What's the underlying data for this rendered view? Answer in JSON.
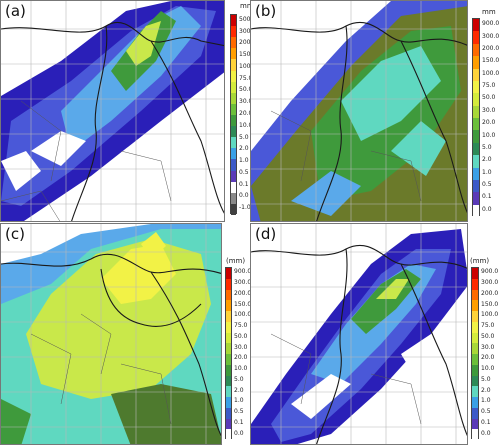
{
  "panels": [
    {
      "label": "(a)",
      "unit": "mm",
      "ticks": [
        "500",
        "300.0",
        "200.0",
        "150.0",
        "100.0",
        "75.0",
        "50.0",
        "30.0",
        "20.0",
        "10.0",
        "5.0",
        "2.0",
        "1.0",
        "0.5",
        "0.1",
        "0.0",
        "-1.0"
      ],
      "colors": [
        "#cc0000",
        "#ff2a00",
        "#ff6a00",
        "#ff9e00",
        "#ffd33a",
        "#f2f246",
        "#d4ec3c",
        "#a8d838",
        "#6cbf3a",
        "#3f9a3c",
        "#2d8a56",
        "#5fd8c0",
        "#3aa0e6",
        "#3c5ac8",
        "#5a3ab8",
        "#ffffff",
        "#8a8a8a",
        "#404040"
      ]
    },
    {
      "label": "(b)",
      "unit": "mm",
      "ticks": [
        "900.0",
        "300.0",
        "200.0",
        "150.0",
        "100.0",
        "75.0",
        "50.0",
        "30.0",
        "20.0",
        "10.0",
        "5.0",
        "2.0",
        "1.0",
        "0.5",
        "0.1",
        "0.0"
      ],
      "colors": [
        "#cc0000",
        "#ff2a00",
        "#ff6a00",
        "#ff9e00",
        "#ffd33a",
        "#f2f246",
        "#d4ec3c",
        "#a8d838",
        "#6cbf3a",
        "#3f9a3c",
        "#2d8a56",
        "#5fd8c0",
        "#3aa0e6",
        "#3c5ac8",
        "#5a3ab8",
        "#ffffff"
      ]
    },
    {
      "label": "(c)",
      "unit": "(mm)",
      "ticks": [
        "900.0",
        "300.0",
        "200.0",
        "150.0",
        "100.0",
        "75.0",
        "50.0",
        "30.0",
        "20.0",
        "10.0",
        "5.0",
        "2.0",
        "1.0",
        "0.5",
        "0.1",
        "0.0"
      ],
      "colors": [
        "#cc0000",
        "#ff2a00",
        "#ff6a00",
        "#ff9e00",
        "#ffd33a",
        "#f2f246",
        "#d4ec3c",
        "#a8d838",
        "#6cbf3a",
        "#3f9a3c",
        "#2d8a56",
        "#5fd8c0",
        "#3aa0e6",
        "#3c5ac8",
        "#5a3ab8",
        "#ffffff"
      ]
    },
    {
      "label": "(d)",
      "unit": "(mm)",
      "ticks": [
        "900.0",
        "300.0",
        "200.0",
        "150.0",
        "100.0",
        "75.0",
        "50.0",
        "30.0",
        "20.0",
        "10.0",
        "5.0",
        "2.0",
        "1.0",
        "0.5",
        "0.1",
        "0.0"
      ],
      "colors": [
        "#cc0000",
        "#ff2a00",
        "#ff6a00",
        "#ff9e00",
        "#ffd33a",
        "#f2f246",
        "#d4ec3c",
        "#a8d838",
        "#6cbf3a",
        "#3f9a3c",
        "#2d8a56",
        "#5fd8c0",
        "#3aa0e6",
        "#3c5ac8",
        "#5a3ab8",
        "#ffffff"
      ]
    }
  ],
  "map_colors": {
    "white": "#ffffff",
    "dark_blue": "#2a1fb8",
    "blue": "#4a58d8",
    "light_blue": "#5aa9ea",
    "cyan": "#5fd8c0",
    "green": "#3f9a3c",
    "dark_green": "#4e7a2e",
    "olive": "#6b7a2a",
    "yellow_green": "#c9e84a",
    "yellow": "#f2f246",
    "border_line": "#1a1a1a",
    "grid_line": "#b8b8b8"
  }
}
